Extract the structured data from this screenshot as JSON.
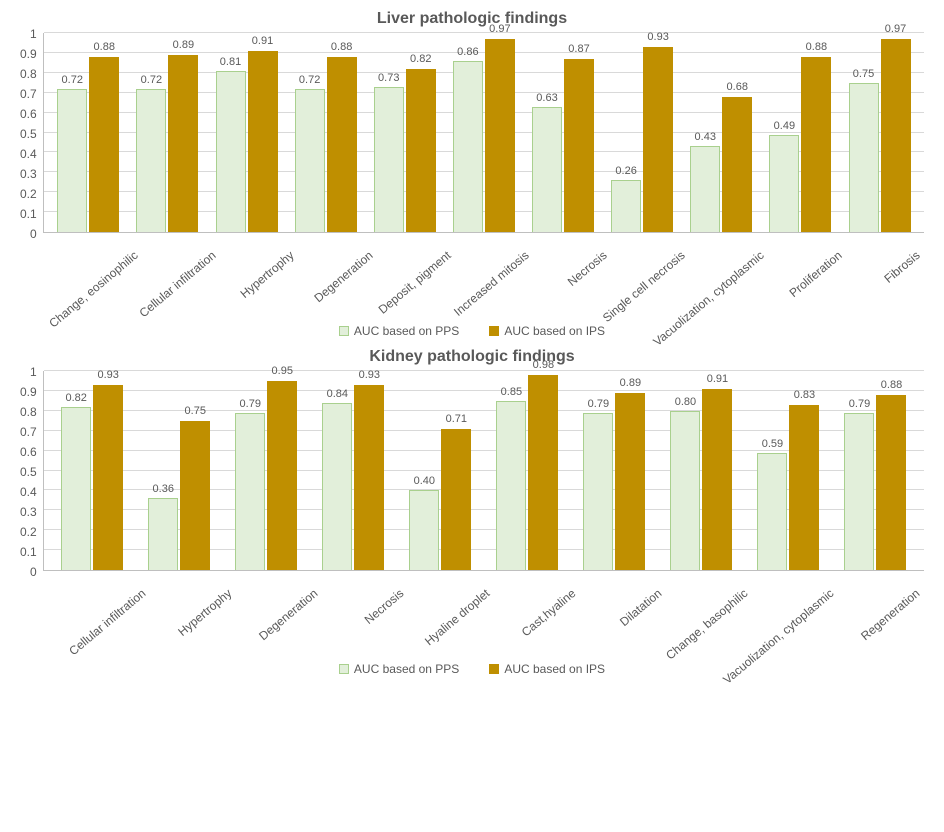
{
  "colors": {
    "series1_fill": "#e2efda",
    "series1_border": "#a9d08e",
    "series2_fill": "#bf8f00",
    "series2_border": "#bf8f00",
    "title_color": "#595959",
    "label_color": "#595959",
    "grid_color": "#d9d9d9",
    "axis_color": "#bfbfbf",
    "background": "#ffffff"
  },
  "legend": {
    "series1": "AUC based on PPS",
    "series2": "AUC based on IPS"
  },
  "axis": {
    "ymin": 0,
    "ymax": 1,
    "ticks": [
      "0",
      "0.1",
      "0.2",
      "0.3",
      "0.4",
      "0.5",
      "0.6",
      "0.7",
      "0.8",
      "0.9",
      "1"
    ]
  },
  "charts": [
    {
      "title": "Liver pathologic findings",
      "categories": [
        "Change, eosinophilic",
        "Cellular infiltration",
        "Hypertrophy",
        "Degeneration",
        "Deposit, pigment",
        "Increased mitosis",
        "Necrosis",
        "Single cell necrosis",
        "Vacuolization, cytoplasmic",
        "Proliferation",
        "Fibrosis"
      ],
      "series1": [
        0.72,
        0.72,
        0.81,
        0.72,
        0.73,
        0.86,
        0.63,
        0.26,
        0.43,
        0.49,
        0.75
      ],
      "series2": [
        0.88,
        0.89,
        0.91,
        0.88,
        0.82,
        0.97,
        0.87,
        0.93,
        0.68,
        0.88,
        0.97
      ]
    },
    {
      "title": "Kidney pathologic findings",
      "categories": [
        "Cellular infiltration",
        "Hypertrophy",
        "Degeneration",
        "Necrosis",
        "Hyaline droplet",
        "Cast,hyaline",
        "Dilatation",
        "Change, basophilic",
        "Vacuolization, cytoplasmic",
        "Regeneration"
      ],
      "series1": [
        0.82,
        0.36,
        0.79,
        0.84,
        0.4,
        0.85,
        0.79,
        0.8,
        0.59,
        0.79
      ],
      "series2": [
        0.93,
        0.75,
        0.95,
        0.93,
        0.71,
        0.98,
        0.89,
        0.91,
        0.83,
        0.88
      ]
    }
  ]
}
